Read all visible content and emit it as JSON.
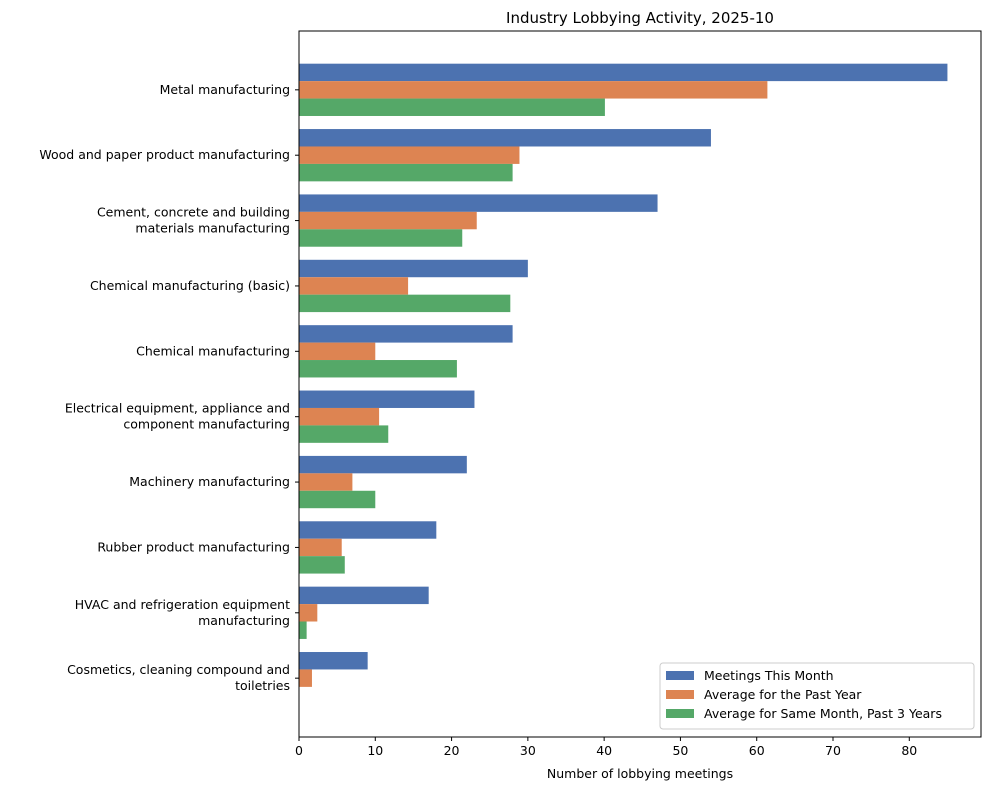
{
  "chart_data": {
    "type": "bar",
    "orientation": "horizontal",
    "title": "Industry Lobbying Activity, 2025-10",
    "xlabel": "Number of lobbying meetings",
    "ylabel": "",
    "xlim": [
      0,
      89.4
    ],
    "xticks": [
      0,
      10,
      20,
      30,
      40,
      50,
      60,
      70,
      80
    ],
    "grid": false,
    "legend_position": "lower-right",
    "categories": [
      [
        "Metal manufacturing"
      ],
      [
        "Wood and paper product manufacturing"
      ],
      [
        "Cement, concrete and building",
        "materials manufacturing"
      ],
      [
        "Chemical manufacturing (basic)"
      ],
      [
        "Chemical manufacturing"
      ],
      [
        "Electrical equipment, appliance and",
        "component manufacturing"
      ],
      [
        "Machinery manufacturing"
      ],
      [
        "Rubber product manufacturing"
      ],
      [
        "HVAC and refrigeration equipment",
        "manufacturing"
      ],
      [
        "Cosmetics, cleaning compound and",
        "toiletries"
      ]
    ],
    "series": [
      {
        "name": "Meetings This Month",
        "color": "#4c72b0",
        "values": [
          85,
          54,
          47,
          30,
          28,
          23,
          22,
          18,
          17,
          9
        ]
      },
      {
        "name": "Average for the Past Year",
        "color": "#dd8452",
        "values": [
          61.4,
          28.9,
          23.3,
          14.3,
          10.0,
          10.5,
          7.0,
          5.6,
          2.4,
          1.7
        ]
      },
      {
        "name": "Average for Same Month, Past 3 Years",
        "color": "#55a868",
        "values": [
          40.1,
          28.0,
          21.4,
          27.7,
          20.7,
          11.7,
          10.0,
          6.0,
          1.0,
          0
        ]
      }
    ]
  }
}
